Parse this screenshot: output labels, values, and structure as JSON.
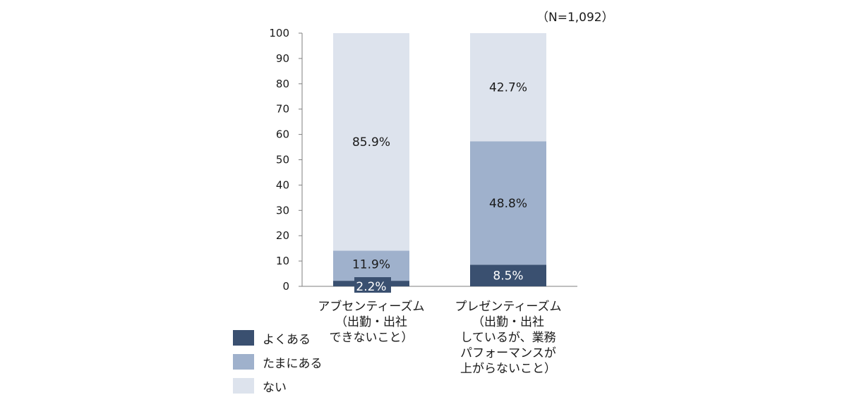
{
  "chart_data": {
    "type": "stacked-bar",
    "note": "（N=1,092）",
    "categories": [
      "アブセンティーズム\n（出勤・出社\nできないこと）",
      "プレゼンティーズム\n（出勤・出社\nしているが、業務\nパフォーマンスが\n上がらないこと）"
    ],
    "series": [
      {
        "name": "よくある",
        "values": [
          2.2,
          8.5
        ],
        "labels": [
          "2.2%",
          "8.5%"
        ],
        "color": "#3a5070",
        "text_color": "#ffffff"
      },
      {
        "name": "たまにある",
        "values": [
          11.9,
          48.8
        ],
        "labels": [
          "11.9%",
          "48.8%"
        ],
        "color": "#9fb1cc",
        "text_color": "#1a1a1a"
      },
      {
        "name": "ない",
        "values": [
          85.9,
          42.7
        ],
        "labels": [
          "85.9%",
          "42.7%"
        ],
        "color": "#dde3ed",
        "text_color": "#1a1a1a"
      }
    ],
    "yticks": [
      "0",
      "10",
      "20",
      "30",
      "40",
      "50",
      "60",
      "70",
      "80",
      "90",
      "100"
    ],
    "ylim": [
      0,
      100
    ]
  }
}
